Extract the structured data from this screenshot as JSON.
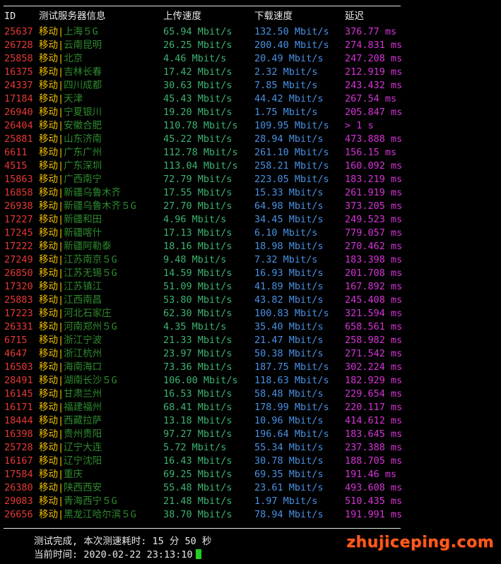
{
  "header": {
    "id": "ID",
    "server": "测试服务器信息",
    "upload": "上传速度",
    "download": "下载速度",
    "latency": "延迟"
  },
  "rows": [
    {
      "id": "25637",
      "carrier": "移动",
      "location": "上海５G",
      "upload": "65.94 Mbit/s",
      "download": "132.50 Mbit/s",
      "latency": "376.77 ms"
    },
    {
      "id": "26728",
      "carrier": "移动",
      "location": "云南昆明",
      "upload": "26.25 Mbit/s",
      "download": "200.40 Mbit/s",
      "latency": "274.831 ms"
    },
    {
      "id": "25858",
      "carrier": "移动",
      "location": "北京",
      "upload": "4.46 Mbit/s",
      "download": "20.49 Mbit/s",
      "latency": "247.208 ms"
    },
    {
      "id": "16375",
      "carrier": "移动",
      "location": "吉林长春",
      "upload": "17.42 Mbit/s",
      "download": "2.32 Mbit/s",
      "latency": "212.919 ms"
    },
    {
      "id": "24337",
      "carrier": "移动",
      "location": "四川成都",
      "upload": "30.63 Mbit/s",
      "download": "7.85 Mbit/s",
      "latency": "243.432 ms"
    },
    {
      "id": "17184",
      "carrier": "移动",
      "location": "天津",
      "upload": "45.43 Mbit/s",
      "download": "44.42 Mbit/s",
      "latency": "267.54 ms"
    },
    {
      "id": "26940",
      "carrier": "移动",
      "location": "宁夏银川",
      "upload": "19.20 Mbit/s",
      "download": "1.75 Mbit/s",
      "latency": "205.847 ms"
    },
    {
      "id": "26404",
      "carrier": "移动",
      "location": "安徽合肥",
      "upload": "110.78 Mbit/s",
      "download": "109.95 Mbit/s",
      "latency": "> 1 s"
    },
    {
      "id": "25881",
      "carrier": "移动",
      "location": "山东济南",
      "upload": "45.22 Mbit/s",
      "download": "28.94 Mbit/s",
      "latency": "473.888 ms"
    },
    {
      "id": "6611",
      "carrier": "移动",
      "location": "广东广州",
      "upload": "112.78 Mbit/s",
      "download": "261.10 Mbit/s",
      "latency": "156.15 ms"
    },
    {
      "id": "4515",
      "carrier": "移动",
      "location": "广东深圳",
      "upload": "113.04 Mbit/s",
      "download": "258.21 Mbit/s",
      "latency": "160.092 ms"
    },
    {
      "id": "15863",
      "carrier": "移动",
      "location": "广西南宁",
      "upload": "72.79 Mbit/s",
      "download": "223.05 Mbit/s",
      "latency": "183.219 ms"
    },
    {
      "id": "16858",
      "carrier": "移动",
      "location": "新疆乌鲁木齐",
      "upload": "17.55 Mbit/s",
      "download": "15.33 Mbit/s",
      "latency": "261.919 ms"
    },
    {
      "id": "26938",
      "carrier": "移动",
      "location": "新疆乌鲁木齐５G",
      "upload": "27.70 Mbit/s",
      "download": "64.98 Mbit/s",
      "latency": "373.205 ms"
    },
    {
      "id": "17227",
      "carrier": "移动",
      "location": "新疆和田",
      "upload": "4.96 Mbit/s",
      "download": "34.45 Mbit/s",
      "latency": "249.523 ms"
    },
    {
      "id": "17245",
      "carrier": "移动",
      "location": "新疆喀什",
      "upload": "17.13 Mbit/s",
      "download": "6.10 Mbit/s",
      "latency": "779.057 ms"
    },
    {
      "id": "17222",
      "carrier": "移动",
      "location": "新疆阿勒泰",
      "upload": "18.16 Mbit/s",
      "download": "18.98 Mbit/s",
      "latency": "270.462 ms"
    },
    {
      "id": "27249",
      "carrier": "移动",
      "location": "江苏南京５G",
      "upload": "9.48 Mbit/s",
      "download": "7.32 Mbit/s",
      "latency": "183.398 ms"
    },
    {
      "id": "26850",
      "carrier": "移动",
      "location": "江苏无锡５G",
      "upload": "14.59 Mbit/s",
      "download": "16.93 Mbit/s",
      "latency": "201.708 ms"
    },
    {
      "id": "17320",
      "carrier": "移动",
      "location": "江苏镇江",
      "upload": "51.09 Mbit/s",
      "download": "41.89 Mbit/s",
      "latency": "167.892 ms"
    },
    {
      "id": "25883",
      "carrier": "移动",
      "location": "江西南昌",
      "upload": "53.80 Mbit/s",
      "download": "43.82 Mbit/s",
      "latency": "245.408 ms"
    },
    {
      "id": "17223",
      "carrier": "移动",
      "location": "河北石家庄",
      "upload": "62.30 Mbit/s",
      "download": "100.83 Mbit/s",
      "latency": "321.594 ms"
    },
    {
      "id": "26331",
      "carrier": "移动",
      "location": "河南郑州５G",
      "upload": "4.35 Mbit/s",
      "download": "35.40 Mbit/s",
      "latency": "658.561 ms"
    },
    {
      "id": "6715",
      "carrier": "移动",
      "location": "浙江宁波",
      "upload": "21.33 Mbit/s",
      "download": "21.47 Mbit/s",
      "latency": "258.982 ms"
    },
    {
      "id": "4647",
      "carrier": "移动",
      "location": "浙江杭州",
      "upload": "23.97 Mbit/s",
      "download": "50.38 Mbit/s",
      "latency": "271.542 ms"
    },
    {
      "id": "16503",
      "carrier": "移动",
      "location": "海南海口",
      "upload": "73.36 Mbit/s",
      "download": "187.75 Mbit/s",
      "latency": "302.224 ms"
    },
    {
      "id": "28491",
      "carrier": "移动",
      "location": "湖南长沙５G",
      "upload": "106.00 Mbit/s",
      "download": "118.63 Mbit/s",
      "latency": "182.929 ms"
    },
    {
      "id": "16145",
      "carrier": "移动",
      "location": "甘肃兰州",
      "upload": "16.53 Mbit/s",
      "download": "58.48 Mbit/s",
      "latency": "229.654 ms"
    },
    {
      "id": "16171",
      "carrier": "移动",
      "location": "福建福州",
      "upload": "68.41 Mbit/s",
      "download": "178.99 Mbit/s",
      "latency": "220.117 ms"
    },
    {
      "id": "18444",
      "carrier": "移动",
      "location": "西藏拉萨",
      "upload": "13.18 Mbit/s",
      "download": "10.96 Mbit/s",
      "latency": "414.612 ms"
    },
    {
      "id": "16398",
      "carrier": "移动",
      "location": "贵州贵阳",
      "upload": "97.27 Mbit/s",
      "download": "196.64 Mbit/s",
      "latency": "183.645 ms"
    },
    {
      "id": "25728",
      "carrier": "移动",
      "location": "辽宁大连",
      "upload": "5.72 Mbit/s",
      "download": "55.34 Mbit/s",
      "latency": "237.388 ms"
    },
    {
      "id": "16167",
      "carrier": "移动",
      "location": "辽宁沈阳",
      "upload": "16.43 Mbit/s",
      "download": "30.78 Mbit/s",
      "latency": "188.705 ms"
    },
    {
      "id": "17584",
      "carrier": "移动",
      "location": "重庆",
      "upload": "69.25 Mbit/s",
      "download": "69.35 Mbit/s",
      "latency": "191.46 ms"
    },
    {
      "id": "26380",
      "carrier": "移动",
      "location": "陕西西安",
      "upload": "55.48 Mbit/s",
      "download": "23.61 Mbit/s",
      "latency": "493.608 ms"
    },
    {
      "id": "29083",
      "carrier": "移动",
      "location": "青海西宁５G",
      "upload": "21.48 Mbit/s",
      "download": "1.97 Mbit/s",
      "latency": "510.435 ms"
    },
    {
      "id": "26656",
      "carrier": "移动",
      "location": "黑龙江哈尔滨５G",
      "upload": "38.70 Mbit/s",
      "download": "78.94 Mbit/s",
      "latency": "191.991 ms"
    }
  ],
  "footer": {
    "summary": "测试完成, 本次测速耗时: 15 分 50 秒",
    "current_time": "当前时间: 2020-02-22 23:13:10"
  },
  "watermark": "zhujiceping.com",
  "colors": {
    "id": "#e53935",
    "carrier": "#f0c000",
    "location": "#2e8b2e",
    "upload": "#3cb371",
    "download": "#4a90e2",
    "latency": "#d633d6",
    "cursor": "#22cc22",
    "watermark": "#ff5a1f"
  }
}
